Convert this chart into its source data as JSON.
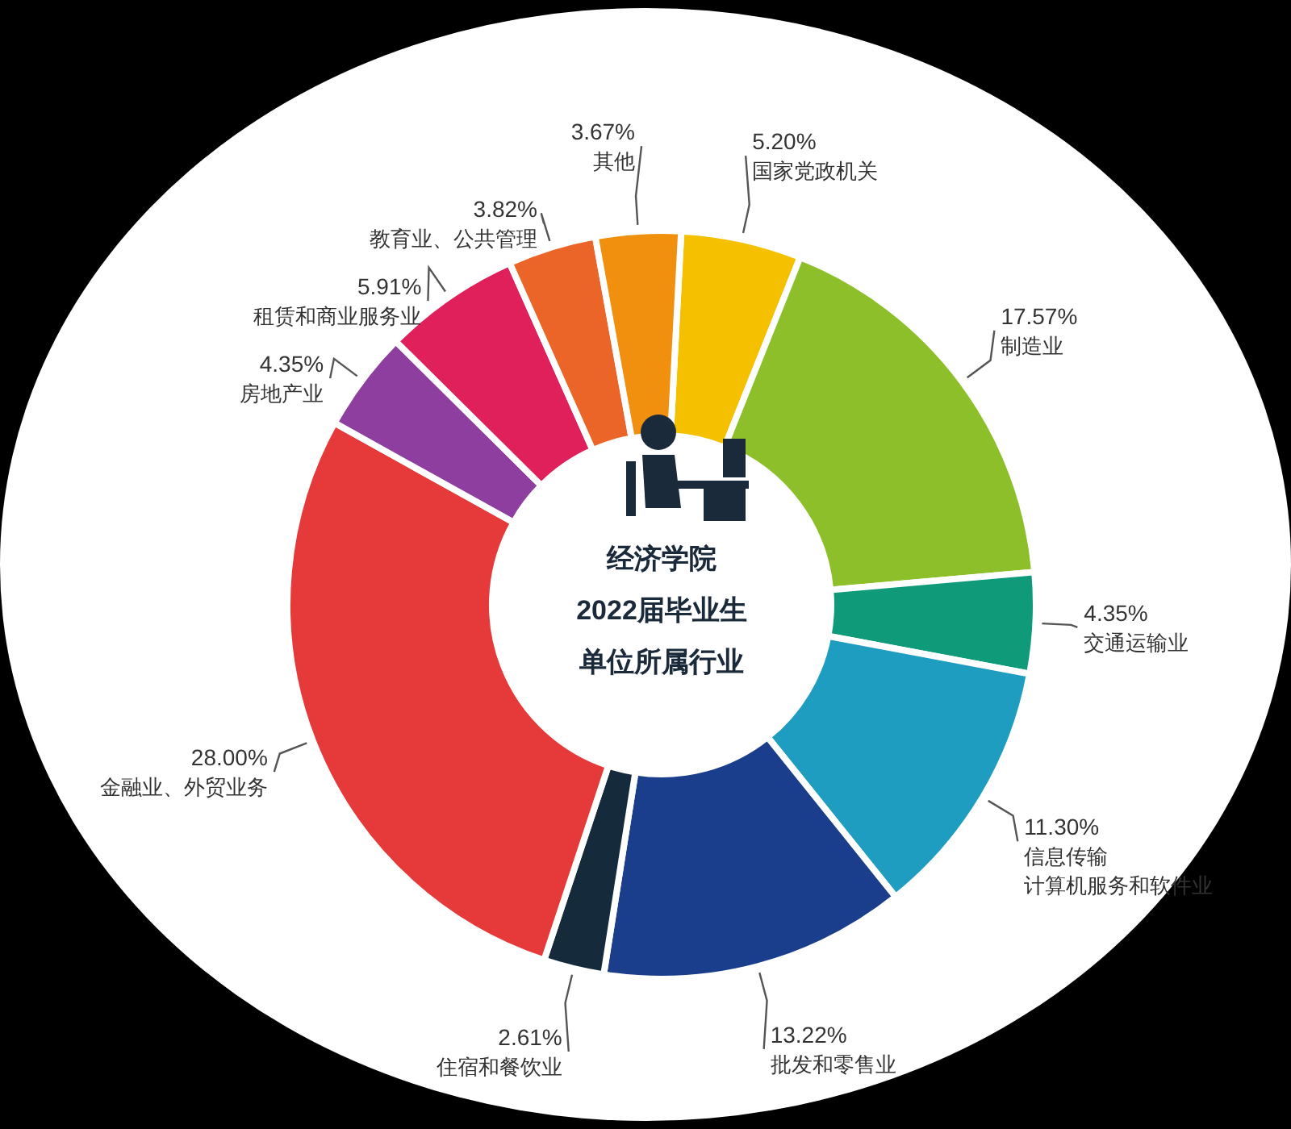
{
  "chart_data": {
    "type": "donut",
    "title": "经济学院",
    "subtitle": "2022届毕业生单位所属行业",
    "categories": [
      "国家党政机关",
      "制造业",
      "交通运输业",
      "信息传输计算机服务和软件业",
      "批发和零售业",
      "住宿和餐饮业",
      "金融业、外贸业务",
      "房地产业",
      "租赁和商业服务业",
      "教育业、公共管理",
      "其他"
    ],
    "values": [
      5.2,
      17.57,
      4.35,
      11.3,
      13.22,
      2.61,
      28.0,
      4.35,
      5.91,
      3.82,
      3.67
    ],
    "colors": [
      "#f5c000",
      "#8cbf2a",
      "#0f9a7a",
      "#1e9dc0",
      "#1a3e8c",
      "#152b3c",
      "#e63a3a",
      "#8e3e9e",
      "#e0205a",
      "#ec6528",
      "#f0900e"
    ],
    "value_labels": [
      "5.20%",
      "17.57%",
      "4.35%",
      "11.30%",
      "13.22%",
      "2.61%",
      "28.00%",
      "4.35%",
      "5.91%",
      "3.82%",
      "3.67%"
    ]
  }
}
